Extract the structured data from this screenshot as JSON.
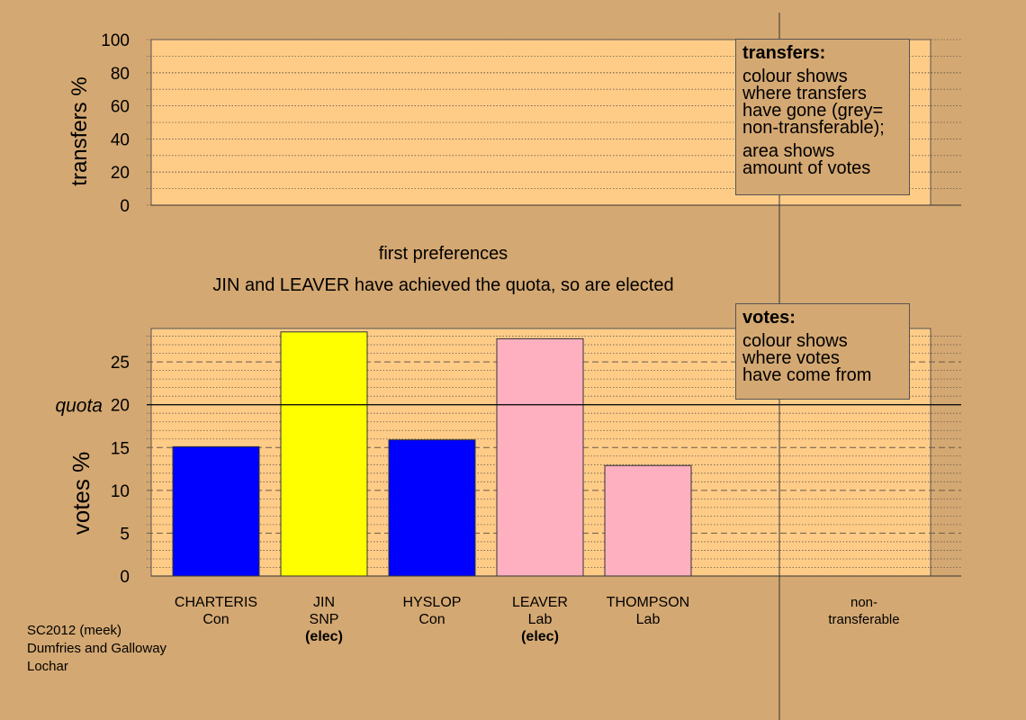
{
  "transfers_box": {
    "title": "transfers:",
    "lines": [
      "colour shows",
      "where transfers",
      "have gone (grey=",
      "non-transferable);"
    ],
    "lines2": [
      "area shows",
      "amount of votes"
    ]
  },
  "votes_box": {
    "title": "votes:",
    "lines": [
      "colour shows",
      "where votes",
      "have come from"
    ]
  },
  "heading": {
    "stage": "first preferences",
    "note": "JIN and LEAVER have achieved the quota, so are elected"
  },
  "footer": {
    "lines": [
      "SC2012 (meek)",
      "Dumfries and Galloway",
      "Lochar"
    ]
  },
  "colors": {
    "background": "#d4a872",
    "plot_bg": "#ffcc88",
    "Con": "#0000ff",
    "SNP": "#ffff00",
    "Lab": "#ffb0c0"
  },
  "chart_data": [
    {
      "type": "bar",
      "title": "",
      "ylabel": "transfers %",
      "ylim": [
        0,
        100
      ],
      "yticks": [
        0,
        20,
        40,
        60,
        80,
        100
      ],
      "values": []
    },
    {
      "type": "bar",
      "ylabel": "votes %",
      "ylim": [
        0,
        28.9
      ],
      "yticks": [
        0,
        5,
        10,
        15,
        20,
        25
      ],
      "quota": 20,
      "quota_label": "quota",
      "categories": [
        {
          "name": "CHARTERIS",
          "party": "Con",
          "status": ""
        },
        {
          "name": "JIN",
          "party": "SNP",
          "status": "(elec)"
        },
        {
          "name": "HYSLOP",
          "party": "Con",
          "status": ""
        },
        {
          "name": "LEAVER",
          "party": "Lab",
          "status": "(elec)"
        },
        {
          "name": "THOMPSON",
          "party": "Lab",
          "status": ""
        },
        {
          "name": "",
          "party": "",
          "status": ""
        },
        {
          "name": "non-",
          "party": "transferable",
          "status": ""
        }
      ],
      "values": [
        15.1,
        28.5,
        15.9,
        27.7,
        12.9,
        0,
        0
      ]
    }
  ]
}
